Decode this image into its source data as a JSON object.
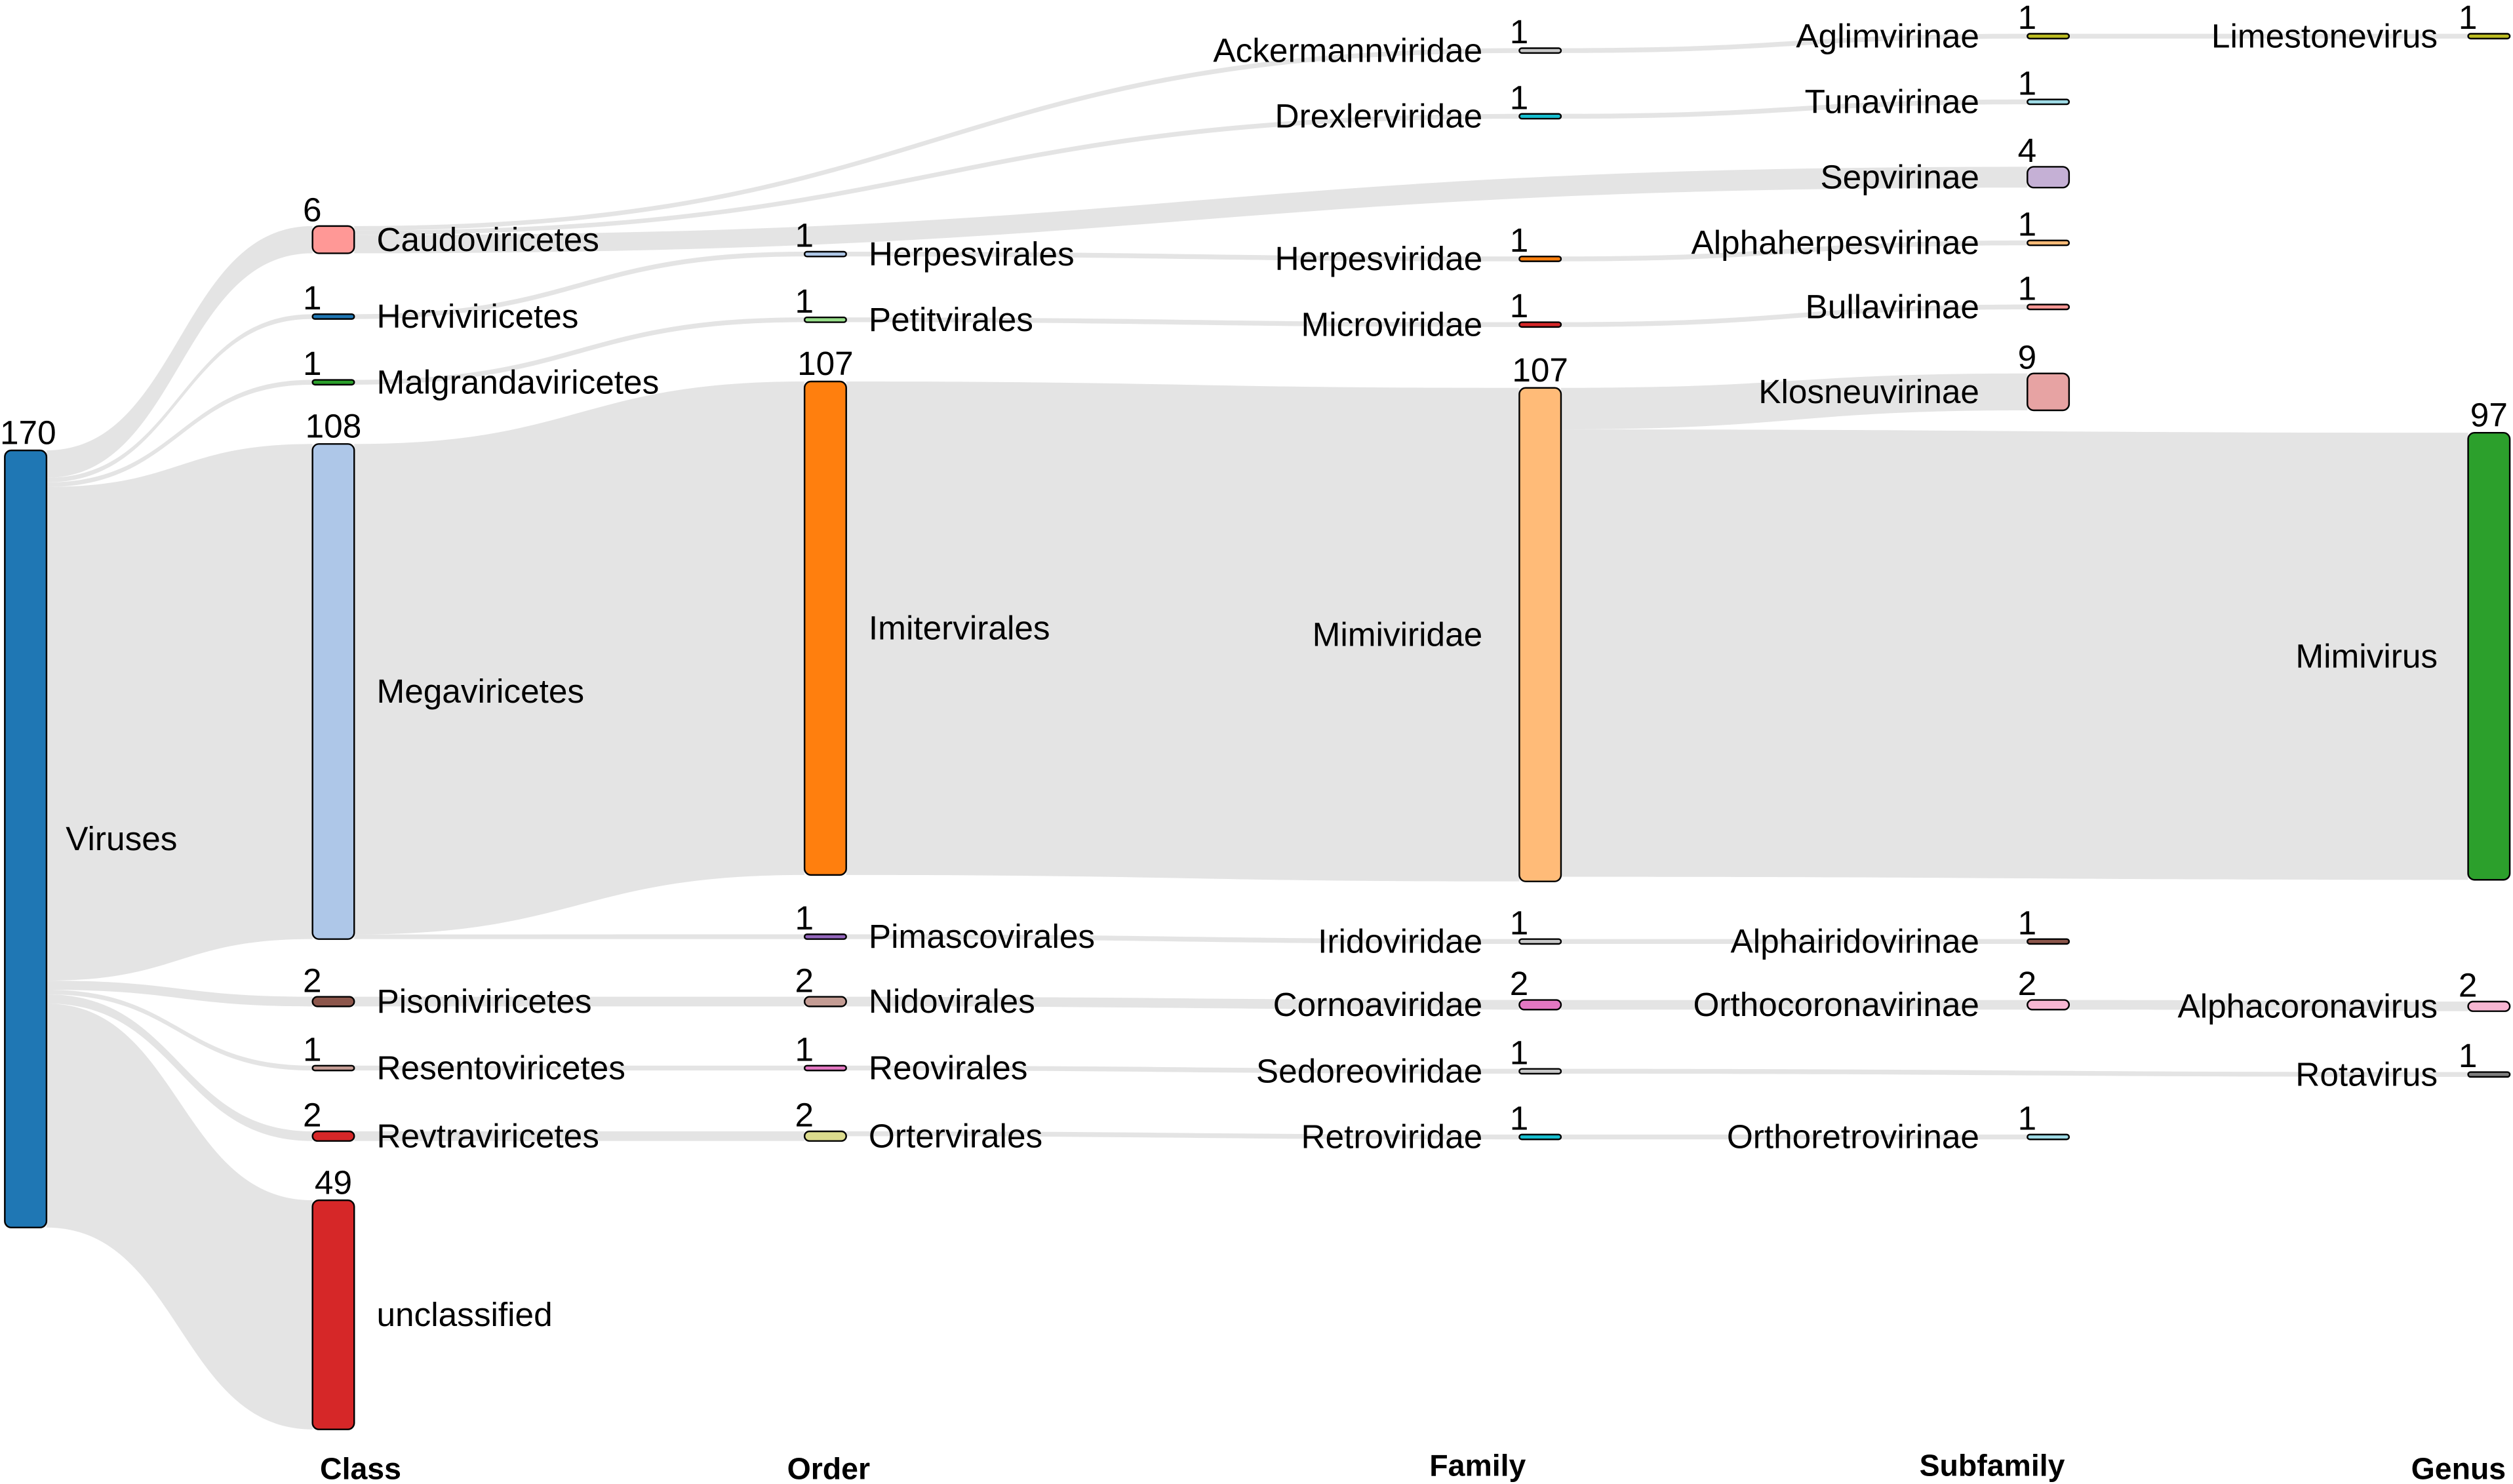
{
  "chart_data": {
    "type": "sankey",
    "levels": [
      "Class",
      "Order",
      "Family",
      "Subfamily",
      "Genus"
    ],
    "link_color": "#e4e4e4",
    "nodes": [
      {
        "id": "Viruses",
        "value": 170,
        "level": "root",
        "color": "#1f77b4"
      },
      {
        "id": "Caudoviricetes",
        "value": 6,
        "level": "Class",
        "color": "#ff9896"
      },
      {
        "id": "Herviviricetes",
        "value": 1,
        "level": "Class",
        "color": "#1f77b4"
      },
      {
        "id": "Malgrandaviricetes",
        "value": 1,
        "level": "Class",
        "color": "#2ca02c"
      },
      {
        "id": "Megaviricetes",
        "value": 108,
        "level": "Class",
        "color": "#aec7e8"
      },
      {
        "id": "Pisoniviricetes",
        "value": 2,
        "level": "Class",
        "color": "#8c564b"
      },
      {
        "id": "Resentoviricetes",
        "value": 1,
        "level": "Class",
        "color": "#c49c94"
      },
      {
        "id": "Revtraviricetes",
        "value": 2,
        "level": "Class",
        "color": "#d62728"
      },
      {
        "id": "unclassified",
        "value": 49,
        "level": "Class",
        "color": "#d62728"
      },
      {
        "id": "Herpesvirales",
        "value": 1,
        "level": "Order",
        "color": "#aec7e8"
      },
      {
        "id": "Petitvirales",
        "value": 1,
        "level": "Order",
        "color": "#98df8a"
      },
      {
        "id": "Imitervirales",
        "value": 107,
        "level": "Order",
        "color": "#ff7f0e"
      },
      {
        "id": "Pimascovirales",
        "value": 1,
        "level": "Order",
        "color": "#9467bd"
      },
      {
        "id": "Nidovirales",
        "value": 2,
        "level": "Order",
        "color": "#c49c94"
      },
      {
        "id": "Reovirales",
        "value": 1,
        "level": "Order",
        "color": "#e377c2"
      },
      {
        "id": "Ortervirales",
        "value": 2,
        "level": "Order",
        "color": "#dbdb8d"
      },
      {
        "id": "Ackermannviridae",
        "value": 1,
        "level": "Family",
        "color": "#c7c7c7"
      },
      {
        "id": "Drexlerviridae",
        "value": 1,
        "level": "Family",
        "color": "#17becf"
      },
      {
        "id": "Herpesviridae",
        "value": 1,
        "level": "Family",
        "color": "#ff7f0e"
      },
      {
        "id": "Microviridae",
        "value": 1,
        "level": "Family",
        "color": "#d62728"
      },
      {
        "id": "Mimiviridae",
        "value": 107,
        "level": "Family",
        "color": "#ffbb78"
      },
      {
        "id": "Iridoviridae",
        "value": 1,
        "level": "Family",
        "color": "#c7c7c7"
      },
      {
        "id": "Cornoaviridae",
        "value": 2,
        "level": "Family",
        "color": "#e377c2"
      },
      {
        "id": "Sedoreoviridae",
        "value": 1,
        "level": "Family",
        "color": "#c7c7c7"
      },
      {
        "id": "Retroviridae",
        "value": 1,
        "level": "Family",
        "color": "#17becf"
      },
      {
        "id": "Aglimvirinae",
        "value": 1,
        "level": "Subfamily",
        "color": "#bcbd22"
      },
      {
        "id": "Tunavirinae",
        "value": 1,
        "level": "Subfamily",
        "color": "#9edae5"
      },
      {
        "id": "Sepvirinae",
        "value": 4,
        "level": "Subfamily",
        "color": "#c5b0d5"
      },
      {
        "id": "Alphaherpesvirinae",
        "value": 1,
        "level": "Subfamily",
        "color": "#ffbb78"
      },
      {
        "id": "Bullavirinae",
        "value": 1,
        "level": "Subfamily",
        "color": "#ff9896"
      },
      {
        "id": "Klosneuvirinae",
        "value": 9,
        "level": "Subfamily",
        "color": "#e7a3a3"
      },
      {
        "id": "Alphairidovirinae",
        "value": 1,
        "level": "Subfamily",
        "color": "#8c564b"
      },
      {
        "id": "Orthocoronavirinae",
        "value": 2,
        "level": "Subfamily",
        "color": "#f7b6d2"
      },
      {
        "id": "Orthoretrovirinae",
        "value": 1,
        "level": "Subfamily",
        "color": "#9edae5"
      },
      {
        "id": "Limestonevirus",
        "value": 1,
        "level": "Genus",
        "color": "#bcbd22"
      },
      {
        "id": "Mimivirus",
        "value": 97,
        "level": "Genus",
        "color": "#2ca02c"
      },
      {
        "id": "Alphacoronavirus",
        "value": 2,
        "level": "Genus",
        "color": "#f7b6d2"
      },
      {
        "id": "Rotavirus",
        "value": 1,
        "level": "Genus",
        "color": "#7f7f7f"
      }
    ],
    "links": [
      [
        "Viruses",
        "Caudoviricetes",
        6
      ],
      [
        "Viruses",
        "Herviviricetes",
        1
      ],
      [
        "Viruses",
        "Malgrandaviricetes",
        1
      ],
      [
        "Viruses",
        "Megaviricetes",
        108
      ],
      [
        "Viruses",
        "Pisoniviricetes",
        2
      ],
      [
        "Viruses",
        "Resentoviricetes",
        1
      ],
      [
        "Viruses",
        "Revtraviricetes",
        2
      ],
      [
        "Viruses",
        "unclassified",
        49
      ],
      [
        "Caudoviricetes",
        "Ackermannviridae",
        1
      ],
      [
        "Caudoviricetes",
        "Drexlerviridae",
        1
      ],
      [
        "Caudoviricetes",
        "Sepvirinae",
        4
      ],
      [
        "Herviviricetes",
        "Herpesvirales",
        1
      ],
      [
        "Malgrandaviricetes",
        "Petitvirales",
        1
      ],
      [
        "Megaviricetes",
        "Imitervirales",
        107
      ],
      [
        "Megaviricetes",
        "Pimascovirales",
        1
      ],
      [
        "Pisoniviricetes",
        "Nidovirales",
        2
      ],
      [
        "Resentoviricetes",
        "Reovirales",
        1
      ],
      [
        "Revtraviricetes",
        "Ortervirales",
        2
      ],
      [
        "Herpesvirales",
        "Herpesviridae",
        1
      ],
      [
        "Petitvirales",
        "Microviridae",
        1
      ],
      [
        "Imitervirales",
        "Mimiviridae",
        107
      ],
      [
        "Pimascovirales",
        "Iridoviridae",
        1
      ],
      [
        "Nidovirales",
        "Cornoaviridae",
        2
      ],
      [
        "Reovirales",
        "Sedoreoviridae",
        1
      ],
      [
        "Ortervirales",
        "Retroviridae",
        1
      ],
      [
        "Ackermannviridae",
        "Aglimvirinae",
        1
      ],
      [
        "Drexlerviridae",
        "Tunavirinae",
        1
      ],
      [
        "Herpesviridae",
        "Alphaherpesvirinae",
        1
      ],
      [
        "Microviridae",
        "Bullavirinae",
        1
      ],
      [
        "Mimiviridae",
        "Klosneuvirinae",
        9
      ],
      [
        "Mimiviridae",
        "Mimivirus",
        97
      ],
      [
        "Iridoviridae",
        "Alphairidovirinae",
        1
      ],
      [
        "Cornoaviridae",
        "Orthocoronavirinae",
        2
      ],
      [
        "Sedoreoviridae",
        "Rotavirus",
        1
      ],
      [
        "Retroviridae",
        "Orthoretrovirinae",
        1
      ],
      [
        "Aglimvirinae",
        "Limestonevirus",
        1
      ],
      [
        "Orthocoronavirinae",
        "Alphacoronavirus",
        2
      ]
    ]
  }
}
